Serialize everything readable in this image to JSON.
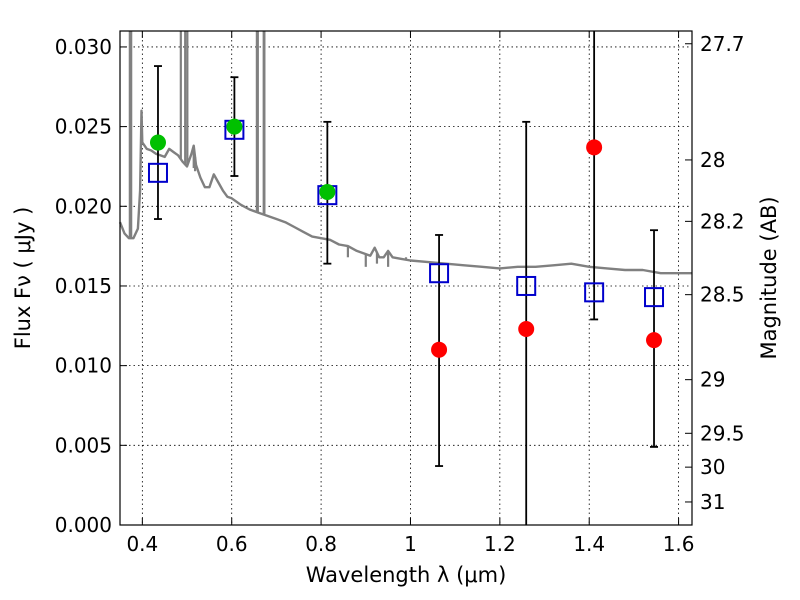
{
  "chart_data": {
    "type": "scatter",
    "xlabel": "Wavelength  λ (μm)",
    "ylabel": "Flux  Fν  ( μJy )",
    "y2label": "Magnitude (AB)",
    "xlim": [
      0.35,
      1.63
    ],
    "ylim": [
      0.0,
      0.031
    ],
    "grid": true,
    "x_ticks": [
      {
        "v": 0.4,
        "label": "0.4"
      },
      {
        "v": 0.6,
        "label": "0.6"
      },
      {
        "v": 0.8,
        "label": "0.8"
      },
      {
        "v": 1.0,
        "label": "1"
      },
      {
        "v": 1.2,
        "label": "1.2"
      },
      {
        "v": 1.4,
        "label": "1.4"
      },
      {
        "v": 1.6,
        "label": "1.6"
      }
    ],
    "y_ticks": [
      {
        "v": 0.0,
        "label": "0.000"
      },
      {
        "v": 0.005,
        "label": "0.005"
      },
      {
        "v": 0.01,
        "label": "0.010"
      },
      {
        "v": 0.015,
        "label": "0.015"
      },
      {
        "v": 0.02,
        "label": "0.020"
      },
      {
        "v": 0.025,
        "label": "0.025"
      },
      {
        "v": 0.03,
        "label": "0.030"
      }
    ],
    "y2_ticks": [
      {
        "mag": 27.7,
        "label": "27.7"
      },
      {
        "mag": 28.0,
        "label": "28"
      },
      {
        "mag": 28.2,
        "label": "28.2"
      },
      {
        "mag": 28.5,
        "label": "28.5"
      },
      {
        "mag": 29.0,
        "label": "29"
      },
      {
        "mag": 29.5,
        "label": "29.5"
      },
      {
        "mag": 30.0,
        "label": "30"
      },
      {
        "mag": 31.0,
        "label": "31"
      }
    ],
    "colors": {
      "sed": "#808080",
      "green": "#00c000",
      "red": "#ff0000",
      "model": "#0000cc",
      "errorbar": "#000000"
    },
    "sed_model": {
      "x": [
        0.35,
        0.36,
        0.37,
        0.38,
        0.39,
        0.395,
        0.398,
        0.4,
        0.405,
        0.41,
        0.42,
        0.43,
        0.44,
        0.45,
        0.46,
        0.47,
        0.48,
        0.49,
        0.5,
        0.51,
        0.515,
        0.52,
        0.53,
        0.54,
        0.55,
        0.56,
        0.57,
        0.58,
        0.59,
        0.6,
        0.62,
        0.64,
        0.66,
        0.68,
        0.7,
        0.72,
        0.74,
        0.76,
        0.78,
        0.8,
        0.82,
        0.84,
        0.86,
        0.88,
        0.89,
        0.9,
        0.91,
        0.92,
        0.93,
        0.94,
        0.95,
        0.96,
        0.98,
        1.0,
        1.04,
        1.08,
        1.12,
        1.16,
        1.2,
        1.24,
        1.28,
        1.32,
        1.36,
        1.4,
        1.44,
        1.48,
        1.52,
        1.56,
        1.6,
        1.63
      ],
      "y": [
        0.019,
        0.0183,
        0.018,
        0.018,
        0.0186,
        0.021,
        0.026,
        0.024,
        0.0238,
        0.0236,
        0.0235,
        0.0233,
        0.0232,
        0.0231,
        0.0236,
        0.0234,
        0.0232,
        0.0228,
        0.0225,
        0.0233,
        0.0238,
        0.0226,
        0.0218,
        0.0212,
        0.0212,
        0.022,
        0.0215,
        0.021,
        0.0206,
        0.0205,
        0.0201,
        0.0198,
        0.0196,
        0.0194,
        0.0192,
        0.019,
        0.0187,
        0.0184,
        0.0181,
        0.018,
        0.0179,
        0.0176,
        0.0175,
        0.0172,
        0.0171,
        0.017,
        0.0169,
        0.0174,
        0.0168,
        0.0168,
        0.0172,
        0.0168,
        0.0167,
        0.0166,
        0.0165,
        0.0164,
        0.0163,
        0.0162,
        0.0161,
        0.0162,
        0.0162,
        0.0163,
        0.0164,
        0.0162,
        0.0161,
        0.016,
        0.016,
        0.0158,
        0.0158,
        0.0158
      ]
    },
    "sed_emission_lines": [
      {
        "x": 0.372,
        "peak": 0.031
      },
      {
        "x": 0.375,
        "peak": 0.031
      },
      {
        "x": 0.5007,
        "peak": 0.031
      },
      {
        "x": 0.4959,
        "peak": 0.031
      },
      {
        "x": 0.4861,
        "peak": 0.031
      },
      {
        "x": 0.6563,
        "peak": 0.031
      },
      {
        "x": 0.6584,
        "peak": 0.031
      },
      {
        "x": 0.6716,
        "peak": 0.031
      },
      {
        "x": 0.6731,
        "peak": 0.031
      }
    ],
    "sed_absorption_lines": [
      {
        "x": 0.515,
        "trough": 0.0224
      },
      {
        "x": 0.518,
        "trough": 0.0222
      },
      {
        "x": 0.86,
        "trough": 0.0168
      },
      {
        "x": 0.9,
        "trough": 0.0162
      },
      {
        "x": 0.925,
        "trough": 0.0164
      },
      {
        "x": 0.95,
        "trough": 0.0162
      },
      {
        "x": 0.99,
        "trough": 0.0168
      }
    ],
    "series": [
      {
        "marker": "circle",
        "color": "green",
        "points": [
          {
            "x": 0.435,
            "y": 0.024,
            "err_low": 0.0192,
            "err_high": 0.0288
          },
          {
            "x": 0.606,
            "y": 0.025,
            "err_low": 0.0219,
            "err_high": 0.0281
          },
          {
            "x": 0.814,
            "y": 0.0209,
            "err_low": 0.0164,
            "err_high": 0.0253
          }
        ]
      },
      {
        "marker": "circle",
        "color": "red",
        "points": [
          {
            "x": 1.064,
            "y": 0.011,
            "err_low": 0.0037,
            "err_high": 0.0182
          },
          {
            "x": 1.259,
            "y": 0.0123,
            "err_low": 0.0,
            "err_high": 0.0253
          },
          {
            "x": 1.411,
            "y": 0.0237,
            "err_low": 0.0129,
            "err_high": 0.031
          },
          {
            "x": 1.545,
            "y": 0.0116,
            "err_low": 0.0049,
            "err_high": 0.0185
          }
        ]
      },
      {
        "marker": "open-square",
        "color": "model",
        "points": [
          {
            "x": 0.435,
            "y": 0.0221
          },
          {
            "x": 0.606,
            "y": 0.0248
          },
          {
            "x": 0.814,
            "y": 0.0207
          },
          {
            "x": 1.064,
            "y": 0.0158
          },
          {
            "x": 1.259,
            "y": 0.015
          },
          {
            "x": 1.411,
            "y": 0.0146
          },
          {
            "x": 1.545,
            "y": 0.0143
          }
        ]
      }
    ]
  }
}
